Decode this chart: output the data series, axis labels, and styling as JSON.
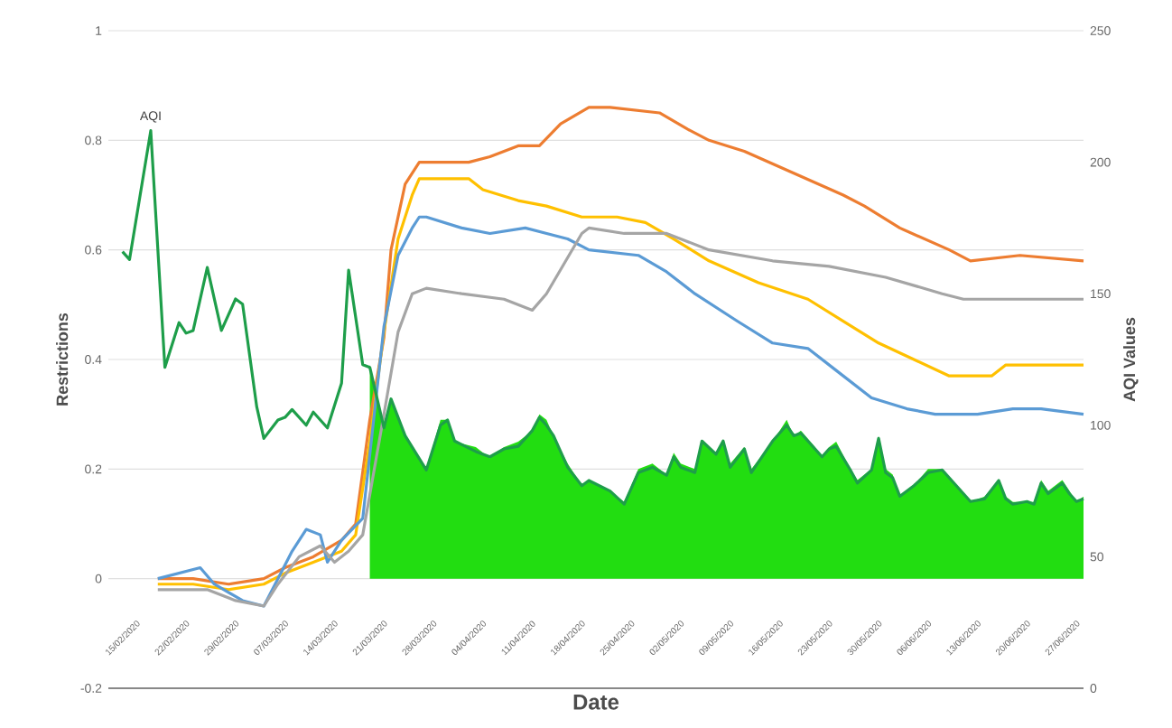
{
  "chart_data": {
    "type": "line",
    "xlabel": "Date",
    "ylabel": "Restrictions",
    "y2label": "AQI Values",
    "xlim": [
      "2020-02-13",
      "2020-06-30"
    ],
    "xticks": [
      {
        "value": "2020-02-15",
        "label": "15/02/2020"
      },
      {
        "value": "2020-02-22",
        "label": "22/02/2020"
      },
      {
        "value": "2020-02-29",
        "label": "29/02/2020"
      },
      {
        "value": "2020-03-07",
        "label": "07/03/2020"
      },
      {
        "value": "2020-03-14",
        "label": "14/03/2020"
      },
      {
        "value": "2020-03-21",
        "label": "21/03/2020"
      },
      {
        "value": "2020-03-28",
        "label": "28/03/2020"
      },
      {
        "value": "2020-04-04",
        "label": "04/04/2020"
      },
      {
        "value": "2020-04-11",
        "label": "11/04/2020"
      },
      {
        "value": "2020-04-18",
        "label": "18/04/2020"
      },
      {
        "value": "2020-04-25",
        "label": "25/04/2020"
      },
      {
        "value": "2020-05-02",
        "label": "02/05/2020"
      },
      {
        "value": "2020-05-09",
        "label": "09/05/2020"
      },
      {
        "value": "2020-05-16",
        "label": "16/05/2020"
      },
      {
        "value": "2020-05-23",
        "label": "23/05/2020"
      },
      {
        "value": "2020-05-30",
        "label": "30/05/2020"
      },
      {
        "value": "2020-06-06",
        "label": "06/06/2020"
      },
      {
        "value": "2020-06-13",
        "label": "13/06/2020"
      },
      {
        "value": "2020-06-20",
        "label": "20/06/2020"
      },
      {
        "value": "2020-06-27",
        "label": "27/06/2020"
      }
    ],
    "ylim": [
      -0.2,
      1
    ],
    "yticks": [
      -0.2,
      0,
      0.2,
      0.4,
      0.6,
      0.8,
      1
    ],
    "y2lim": [
      0,
      250
    ],
    "y2ticks": [
      0,
      50,
      100,
      150,
      200,
      250
    ],
    "grid": "y",
    "line_style": "solid",
    "series": [
      {
        "type": "area",
        "color": "#22dd11",
        "x": [
          "2020-03-21",
          "2020-03-23",
          "2020-03-24",
          "2020-03-26",
          "2020-03-29",
          "2020-03-31",
          "2020-04-01",
          "2020-04-02",
          "2020-04-05",
          "2020-04-07",
          "2020-04-09",
          "2020-04-11",
          "2020-04-13",
          "2020-04-14",
          "2020-04-15",
          "2020-04-16",
          "2020-04-18",
          "2020-04-20",
          "2020-04-21",
          "2020-04-24",
          "2020-04-26",
          "2020-04-28",
          "2020-04-30",
          "2020-05-02",
          "2020-05-03",
          "2020-05-04",
          "2020-05-06",
          "2020-05-07",
          "2020-05-09",
          "2020-05-10",
          "2020-05-11",
          "2020-05-13",
          "2020-05-14",
          "2020-05-17",
          "2020-05-19",
          "2020-05-20",
          "2020-05-21",
          "2020-05-23",
          "2020-05-24",
          "2020-05-25",
          "2020-05-26",
          "2020-05-28",
          "2020-05-29",
          "2020-05-31",
          "2020-06-01",
          "2020-06-02",
          "2020-06-03",
          "2020-06-04",
          "2020-06-06",
          "2020-06-08",
          "2020-06-10",
          "2020-06-12",
          "2020-06-14",
          "2020-06-16",
          "2020-06-18",
          "2020-06-19",
          "2020-06-20",
          "2020-06-22",
          "2020-06-23",
          "2020-06-24",
          "2020-06-25",
          "2020-06-27",
          "2020-06-28",
          "2020-06-29",
          "2020-06-30"
        ],
        "values": [
          0.39,
          0.28,
          0.33,
          0.26,
          0.2,
          0.29,
          0.29,
          0.25,
          0.24,
          0.22,
          0.24,
          0.25,
          0.27,
          0.3,
          0.29,
          0.26,
          0.21,
          0.17,
          0.18,
          0.16,
          0.14,
          0.2,
          0.21,
          0.19,
          0.23,
          0.21,
          0.2,
          0.25,
          0.23,
          0.25,
          0.21,
          0.24,
          0.2,
          0.25,
          0.29,
          0.26,
          0.27,
          0.24,
          0.22,
          0.24,
          0.25,
          0.2,
          0.18,
          0.2,
          0.26,
          0.2,
          0.19,
          0.15,
          0.17,
          0.2,
          0.2,
          0.17,
          0.14,
          0.15,
          0.18,
          0.15,
          0.14,
          0.14,
          0.14,
          0.18,
          0.16,
          0.18,
          0.16,
          0.14,
          0.15
        ]
      },
      {
        "color": "#ed7d31",
        "x": [
          "2020-02-20",
          "2020-02-25",
          "2020-03-01",
          "2020-03-06",
          "2020-03-09",
          "2020-03-13",
          "2020-03-17",
          "2020-03-19",
          "2020-03-21",
          "2020-03-23",
          "2020-03-24",
          "2020-03-26",
          "2020-03-28",
          "2020-04-04",
          "2020-04-07",
          "2020-04-11",
          "2020-04-14",
          "2020-04-17",
          "2020-04-21",
          "2020-04-24",
          "2020-05-01",
          "2020-05-05",
          "2020-05-08",
          "2020-05-13",
          "2020-05-20",
          "2020-05-27",
          "2020-05-30",
          "2020-06-04",
          "2020-06-11",
          "2020-06-14",
          "2020-06-21",
          "2020-06-30"
        ],
        "values": [
          0.0,
          0.0,
          -0.01,
          0.0,
          0.02,
          0.04,
          0.07,
          0.1,
          0.29,
          0.44,
          0.6,
          0.72,
          0.76,
          0.76,
          0.77,
          0.79,
          0.79,
          0.83,
          0.86,
          0.86,
          0.85,
          0.82,
          0.8,
          0.78,
          0.74,
          0.7,
          0.68,
          0.64,
          0.6,
          0.58,
          0.59,
          0.58
        ]
      },
      {
        "color": "#ffc000",
        "x": [
          "2020-02-20",
          "2020-02-25",
          "2020-03-01",
          "2020-03-06",
          "2020-03-09",
          "2020-03-13",
          "2020-03-17",
          "2020-03-19",
          "2020-03-21",
          "2020-03-23",
          "2020-03-25",
          "2020-03-27",
          "2020-03-28",
          "2020-04-04",
          "2020-04-06",
          "2020-04-11",
          "2020-04-15",
          "2020-04-20",
          "2020-04-25",
          "2020-04-29",
          "2020-05-03",
          "2020-05-08",
          "2020-05-15",
          "2020-05-22",
          "2020-05-27",
          "2020-06-01",
          "2020-06-06",
          "2020-06-11",
          "2020-06-17",
          "2020-06-19",
          "2020-06-25",
          "2020-06-30"
        ],
        "values": [
          -0.01,
          -0.01,
          -0.02,
          -0.01,
          0.01,
          0.03,
          0.05,
          0.08,
          0.25,
          0.45,
          0.62,
          0.7,
          0.73,
          0.73,
          0.71,
          0.69,
          0.68,
          0.66,
          0.66,
          0.65,
          0.62,
          0.58,
          0.54,
          0.51,
          0.47,
          0.43,
          0.4,
          0.37,
          0.37,
          0.39,
          0.39,
          0.39
        ]
      },
      {
        "color": "#5b9bd5",
        "x": [
          "2020-02-20",
          "2020-02-26",
          "2020-02-28",
          "2020-03-03",
          "2020-03-06",
          "2020-03-08",
          "2020-03-10",
          "2020-03-12",
          "2020-03-14",
          "2020-03-15",
          "2020-03-17",
          "2020-03-20",
          "2020-03-23",
          "2020-03-25",
          "2020-03-27",
          "2020-03-28",
          "2020-03-29",
          "2020-04-03",
          "2020-04-07",
          "2020-04-12",
          "2020-04-18",
          "2020-04-21",
          "2020-04-28",
          "2020-05-02",
          "2020-05-06",
          "2020-05-12",
          "2020-05-17",
          "2020-05-22",
          "2020-05-26",
          "2020-05-31",
          "2020-06-05",
          "2020-06-09",
          "2020-06-15",
          "2020-06-20",
          "2020-06-24",
          "2020-06-30"
        ],
        "values": [
          0.0,
          0.02,
          -0.01,
          -0.04,
          -0.05,
          0.0,
          0.05,
          0.09,
          0.08,
          0.03,
          0.07,
          0.11,
          0.46,
          0.59,
          0.64,
          0.66,
          0.66,
          0.64,
          0.63,
          0.64,
          0.62,
          0.6,
          0.59,
          0.56,
          0.52,
          0.47,
          0.43,
          0.42,
          0.38,
          0.33,
          0.31,
          0.3,
          0.3,
          0.31,
          0.31,
          0.3
        ]
      },
      {
        "color": "#a5a5a5",
        "x": [
          "2020-02-20",
          "2020-02-27",
          "2020-03-02",
          "2020-03-06",
          "2020-03-08",
          "2020-03-11",
          "2020-03-14",
          "2020-03-16",
          "2020-03-18",
          "2020-03-20",
          "2020-03-23",
          "2020-03-25",
          "2020-03-27",
          "2020-03-29",
          "2020-04-03",
          "2020-04-09",
          "2020-04-13",
          "2020-04-15",
          "2020-04-20",
          "2020-04-21",
          "2020-04-26",
          "2020-05-02",
          "2020-05-08",
          "2020-05-17",
          "2020-05-25",
          "2020-06-02",
          "2020-06-10",
          "2020-06-13",
          "2020-06-21",
          "2020-06-30"
        ],
        "values": [
          -0.02,
          -0.02,
          -0.04,
          -0.05,
          -0.01,
          0.04,
          0.06,
          0.03,
          0.05,
          0.08,
          0.3,
          0.45,
          0.52,
          0.53,
          0.52,
          0.51,
          0.49,
          0.52,
          0.63,
          0.64,
          0.63,
          0.63,
          0.6,
          0.58,
          0.57,
          0.55,
          0.52,
          0.51,
          0.51,
          0.51
        ]
      },
      {
        "name": "AQI",
        "axis": "y2",
        "color": "#1e9e4a",
        "x": [
          "2020-02-15",
          "2020-02-16",
          "2020-02-19",
          "2020-02-21",
          "2020-02-23",
          "2020-02-24",
          "2020-02-25",
          "2020-02-27",
          "2020-02-29",
          "2020-03-02",
          "2020-03-03",
          "2020-03-05",
          "2020-03-06",
          "2020-03-08",
          "2020-03-09",
          "2020-03-10",
          "2020-03-12",
          "2020-03-13",
          "2020-03-15",
          "2020-03-17",
          "2020-03-18",
          "2020-03-20",
          "2020-03-21",
          "2020-03-23",
          "2020-03-24",
          "2020-03-26",
          "2020-03-29",
          "2020-03-31",
          "2020-04-01",
          "2020-04-02",
          "2020-04-05",
          "2020-04-07",
          "2020-04-09",
          "2020-04-11",
          "2020-04-13",
          "2020-04-14",
          "2020-04-15",
          "2020-04-16",
          "2020-04-18",
          "2020-04-20",
          "2020-04-21",
          "2020-04-24",
          "2020-04-26",
          "2020-04-28",
          "2020-04-30",
          "2020-05-02",
          "2020-05-03",
          "2020-05-04",
          "2020-05-06",
          "2020-05-07",
          "2020-05-09",
          "2020-05-10",
          "2020-05-11",
          "2020-05-13",
          "2020-05-14",
          "2020-05-17",
          "2020-05-19",
          "2020-05-20",
          "2020-05-21",
          "2020-05-23",
          "2020-05-24",
          "2020-05-25",
          "2020-05-26",
          "2020-05-28",
          "2020-05-29",
          "2020-05-31",
          "2020-06-01",
          "2020-06-02",
          "2020-06-03",
          "2020-06-04",
          "2020-06-06",
          "2020-06-08",
          "2020-06-10",
          "2020-06-12",
          "2020-06-14",
          "2020-06-16",
          "2020-06-18",
          "2020-06-19",
          "2020-06-20",
          "2020-06-22",
          "2020-06-23",
          "2020-06-24",
          "2020-06-25",
          "2020-06-27",
          "2020-06-28",
          "2020-06-29",
          "2020-06-30"
        ],
        "values": [
          166,
          163,
          212,
          122,
          139,
          135,
          136,
          160,
          136,
          148,
          146,
          107,
          95,
          102,
          103,
          106,
          100,
          105,
          99,
          116,
          159,
          123,
          122,
          99,
          110,
          96,
          83,
          100,
          102,
          94,
          90,
          88,
          91,
          92,
          98,
          103,
          100,
          96,
          84,
          77,
          79,
          75,
          70,
          82,
          84,
          81,
          88,
          84,
          82,
          94,
          89,
          94,
          84,
          91,
          82,
          94,
          100,
          96,
          97,
          91,
          88,
          91,
          92,
          83,
          78,
          83,
          95,
          82,
          80,
          73,
          77,
          82,
          83,
          77,
          71,
          72,
          79,
          72,
          70,
          71,
          70,
          78,
          74,
          78,
          74,
          71,
          72
        ]
      }
    ]
  }
}
